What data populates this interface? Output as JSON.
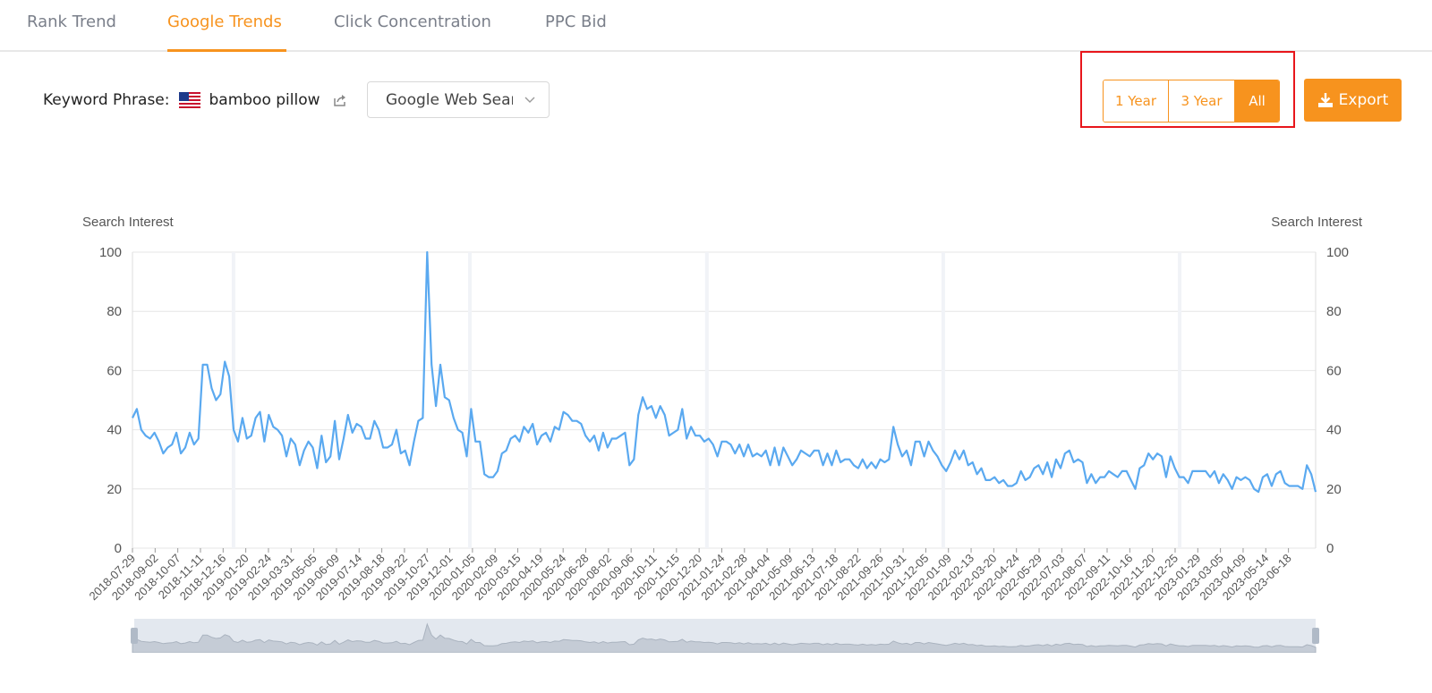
{
  "tabs": [
    {
      "label": "Rank Trend",
      "active": false
    },
    {
      "label": "Google Trends",
      "active": true
    },
    {
      "label": "Click Concentration",
      "active": false
    },
    {
      "label": "PPC Bid",
      "active": false
    }
  ],
  "keyword": {
    "label": "Keyword Phrase:",
    "flag_icon": "us-flag-icon",
    "phrase": "bamboo pillow",
    "share_icon": "share-icon"
  },
  "search_type": {
    "value": "Google Web Search"
  },
  "range_buttons": [
    {
      "label": "1 Year",
      "active": false
    },
    {
      "label": "3 Year",
      "active": false
    },
    {
      "label": "All",
      "active": true
    }
  ],
  "export": {
    "label": "Export",
    "icon": "download-icon"
  },
  "colors": {
    "accent": "#f7931e",
    "line": "#5aa9f0",
    "highlight": "#e8161b"
  },
  "chart_data": {
    "type": "line",
    "y_left_label": "Search Interest",
    "y_right_label": "Search Interest",
    "ylim": [
      0,
      100
    ],
    "y_ticks": [
      0,
      20,
      40,
      60,
      80,
      100
    ],
    "x_tick_labels": [
      "2018-07-29",
      "2018-09-02",
      "2018-10-07",
      "2018-11-11",
      "2018-12-16",
      "2019-01-20",
      "2019-02-24",
      "2019-03-31",
      "2019-05-05",
      "2019-06-09",
      "2019-07-14",
      "2019-08-18",
      "2019-09-22",
      "2019-10-27",
      "2019-12-01",
      "2020-01-05",
      "2020-02-09",
      "2020-03-15",
      "2020-04-19",
      "2020-05-24",
      "2020-06-28",
      "2020-08-02",
      "2020-09-06",
      "2020-10-11",
      "2020-11-15",
      "2020-12-20",
      "2021-01-24",
      "2021-02-28",
      "2021-04-04",
      "2021-05-09",
      "2021-06-13",
      "2021-07-18",
      "2021-08-22",
      "2021-09-26",
      "2021-10-31",
      "2021-12-05",
      "2022-01-09",
      "2022-02-13",
      "2022-03-20",
      "2022-04-24",
      "2022-05-29",
      "2022-07-03",
      "2022-08-07",
      "2022-09-11",
      "2022-10-16",
      "2022-11-20",
      "2022-12-25",
      "2023-01-29",
      "2023-03-05",
      "2023-04-09",
      "2023-05-14",
      "2023-06-18"
    ],
    "x_start": "2018-07-29",
    "x_end": "2023-07-30",
    "year_markers": [
      "2019-01-01",
      "2020-01-01",
      "2021-01-01",
      "2022-01-01",
      "2023-01-01"
    ],
    "values": [
      44,
      47,
      40,
      38,
      37,
      39,
      36,
      32,
      34,
      35,
      39,
      32,
      34,
      39,
      35,
      37,
      62,
      62,
      54,
      50,
      52,
      63,
      58,
      40,
      36,
      44,
      37,
      38,
      44,
      46,
      36,
      45,
      41,
      40,
      38,
      31,
      37,
      35,
      28,
      33,
      36,
      34,
      27,
      38,
      29,
      31,
      43,
      30,
      37,
      45,
      39,
      42,
      41,
      37,
      37,
      43,
      40,
      34,
      34,
      35,
      40,
      32,
      33,
      28,
      36,
      43,
      44,
      100,
      62,
      48,
      62,
      51,
      50,
      44,
      40,
      39,
      31,
      47,
      36,
      36,
      25,
      24,
      24,
      26,
      32,
      33,
      37,
      38,
      36,
      41,
      39,
      42,
      35,
      38,
      39,
      36,
      41,
      40,
      46,
      45,
      43,
      43,
      42,
      38,
      36,
      38,
      33,
      39,
      34,
      37,
      37,
      38,
      39,
      28,
      30,
      45,
      51,
      47,
      48,
      44,
      48,
      45,
      38,
      39,
      40,
      47,
      37,
      41,
      38,
      38,
      36,
      37,
      35,
      31,
      36,
      36,
      35,
      32,
      35,
      31,
      35,
      31,
      32,
      31,
      33,
      28,
      34,
      28,
      34,
      31,
      28,
      30,
      33,
      32,
      31,
      33,
      33,
      28,
      32,
      28,
      33,
      29,
      30,
      30,
      28,
      27,
      30,
      27,
      29,
      27,
      30,
      29,
      30,
      41,
      35,
      31,
      33,
      28,
      36,
      36,
      31,
      36,
      33,
      31,
      28,
      26,
      29,
      33,
      30,
      33,
      28,
      29,
      25,
      27,
      23,
      23,
      24,
      22,
      23,
      21,
      21,
      22,
      26,
      23,
      24,
      27,
      28,
      25,
      29,
      24,
      30,
      27,
      32,
      33,
      29,
      30,
      29,
      22,
      25,
      22,
      24,
      24,
      26,
      25,
      24,
      26,
      26,
      23,
      20,
      27,
      28,
      32,
      30,
      32,
      31,
      24,
      31,
      27,
      24,
      24,
      22,
      26,
      26,
      26,
      26,
      24,
      26,
      22,
      25,
      23,
      20,
      24,
      23,
      24,
      23,
      20,
      19,
      24,
      25,
      21,
      25,
      26,
      22,
      21,
      21,
      21,
      20,
      28,
      25,
      19
    ]
  }
}
